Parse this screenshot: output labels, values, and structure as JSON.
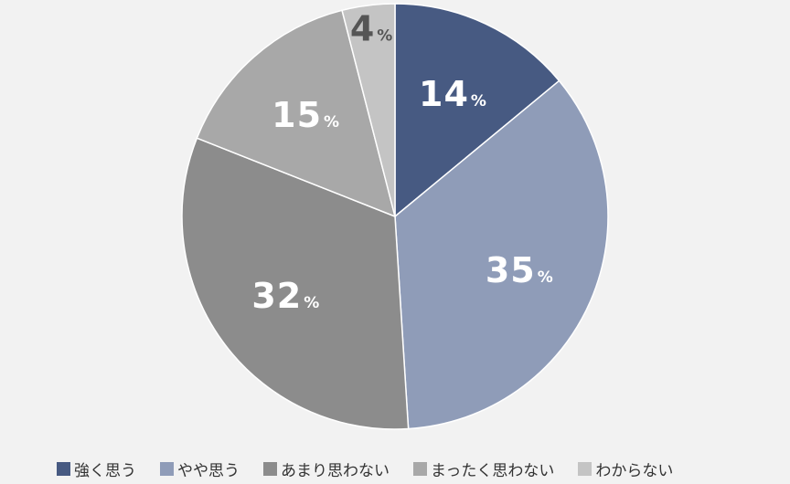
{
  "chart_data": {
    "type": "pie",
    "categories": [
      "強く思う",
      "やや思う",
      "あまり思わない",
      "まったく思わない",
      "わからない"
    ],
    "values": [
      14,
      35,
      32,
      15,
      4
    ],
    "value_suffix": "%",
    "colors": [
      "#475a82",
      "#8f9cb8",
      "#8c8c8c",
      "#a8a8a8",
      "#c4c4c4"
    ],
    "label_colors": [
      "#ffffff",
      "#ffffff",
      "#ffffff",
      "#ffffff",
      "#555555"
    ],
    "start_angle": "12 o'clock",
    "direction": "clockwise",
    "legend_position": "bottom"
  }
}
